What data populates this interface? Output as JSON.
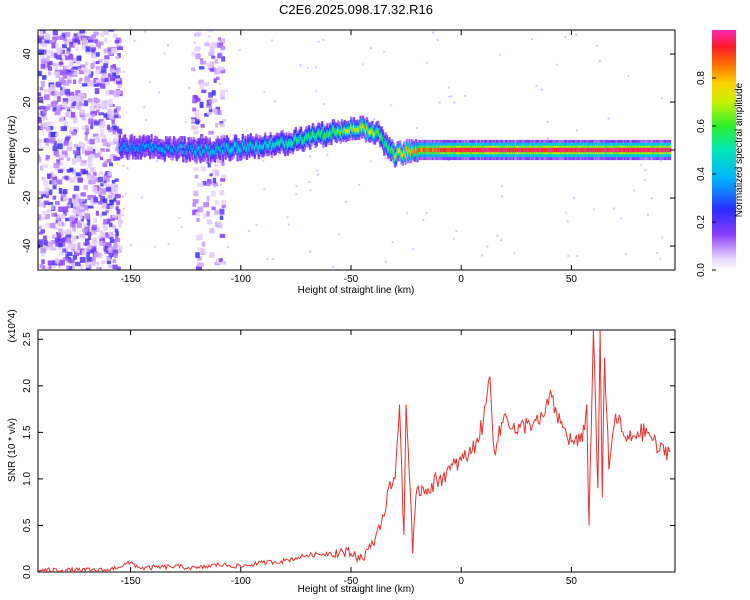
{
  "title": "C2E6.2025.098.17.32.R16",
  "colors": {
    "snr_line": "#e8302e",
    "spectrogram_low": "#7a3ef0",
    "spectrogram_mid": "#22e0c8",
    "spectrogram_high": "#ff2030"
  },
  "chart_data": [
    {
      "type": "heatmap",
      "xlabel": "Height of straight line (km)",
      "ylabel": "Frequency (Hz)",
      "xlim": [
        -192,
        97
      ],
      "ylim": [
        -50,
        50
      ],
      "xticks": [
        -150,
        -100,
        -50,
        0,
        50
      ],
      "yticks": [
        -40,
        -20,
        0,
        20,
        40
      ],
      "colorbar": {
        "label": "Normalized spectral amplitude",
        "range": [
          0.0,
          1.0
        ],
        "ticks": [
          "0.0",
          "0.2",
          "0.4",
          "0.6",
          "0.8"
        ],
        "colormap": "rainbow (purple-blue-cyan-green-yellow-red-magenta)"
      },
      "ridge": {
        "description": "dominant frequency band vs height",
        "height_km": [
          -155,
          -140,
          -120,
          -100,
          -80,
          -70,
          -60,
          -50,
          -45,
          -40,
          -37,
          -35,
          -32,
          -30,
          -25,
          -20,
          -10,
          0,
          10,
          30,
          60,
          95
        ],
        "frequency_hz": [
          1,
          1,
          0,
          1,
          3,
          5,
          7,
          9,
          9,
          8,
          6,
          3,
          0,
          -2,
          -1,
          0,
          0,
          0,
          0,
          0,
          0,
          0
        ],
        "peak_amplitude": [
          0.35,
          0.35,
          0.4,
          0.45,
          0.5,
          0.55,
          0.6,
          0.7,
          0.75,
          0.7,
          0.6,
          0.55,
          0.6,
          0.7,
          0.8,
          0.85,
          0.9,
          0.95,
          0.95,
          0.95,
          0.95,
          0.95
        ]
      },
      "noise_regions_km": [
        [
          -192,
          -155
        ],
        [
          -122,
          -108
        ]
      ]
    },
    {
      "type": "line",
      "xlabel": "Height of straight line (km)",
      "ylabel": "SNR (10 * v/v)",
      "y_multiplier": "(x10^4)",
      "xlim": [
        -192,
        97
      ],
      "ylim": [
        0,
        2.6
      ],
      "xticks": [
        -150,
        -100,
        -50,
        0,
        50
      ],
      "yticks": [
        "0.0",
        "0.5",
        "1.0",
        "1.5",
        "2.0",
        "2.5"
      ],
      "series": [
        {
          "x": [
            -192,
            -160,
            -150,
            -145,
            -130,
            -120,
            -110,
            -100,
            -90,
            -80,
            -70,
            -60,
            -55,
            -50,
            -45,
            -40,
            -38,
            -35,
            -33,
            -30,
            -28,
            -26,
            -25,
            -24,
            -22,
            -20,
            -15,
            -10,
            -5,
            0,
            5,
            10,
            13,
            15,
            20,
            25,
            30,
            35,
            38,
            40,
            45,
            50,
            55,
            57,
            58,
            60,
            62,
            63,
            64,
            65,
            67,
            70,
            75,
            80,
            85,
            90,
            95
          ],
          "y": [
            0.02,
            0.02,
            0.1,
            0.04,
            0.06,
            0.04,
            0.08,
            0.06,
            0.1,
            0.12,
            0.18,
            0.2,
            0.22,
            0.2,
            0.15,
            0.3,
            0.45,
            0.6,
            0.9,
            1.0,
            1.8,
            0.4,
            1.8,
            1.3,
            0.2,
            0.9,
            0.9,
            1.0,
            1.1,
            1.2,
            1.3,
            1.6,
            2.1,
            1.3,
            1.7,
            1.5,
            1.6,
            1.6,
            1.7,
            1.9,
            1.6,
            1.4,
            1.4,
            1.8,
            0.5,
            2.6,
            0.9,
            2.6,
            0.8,
            2.3,
            1.1,
            1.7,
            1.4,
            1.5,
            1.5,
            1.3,
            1.3
          ]
        }
      ]
    }
  ]
}
